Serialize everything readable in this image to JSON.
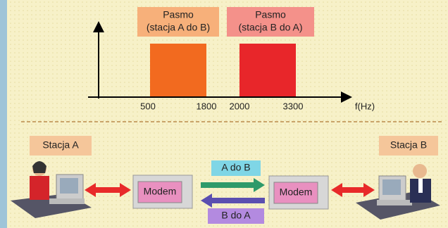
{
  "band_diagram": {
    "bands": [
      {
        "title": "Pasmo",
        "subtitle": "(stacja A do B)"
      },
      {
        "title": "Pasmo",
        "subtitle": "(stacja B do A)"
      }
    ],
    "ticks": [
      500,
      1800,
      2000,
      3300
    ],
    "axis_label": "f(Hz)"
  },
  "connection": {
    "stations": [
      "Stacja A",
      "Stacja B"
    ],
    "devices": [
      "Modem",
      "Modem"
    ],
    "directions": [
      "A do B",
      "B do A"
    ]
  }
}
